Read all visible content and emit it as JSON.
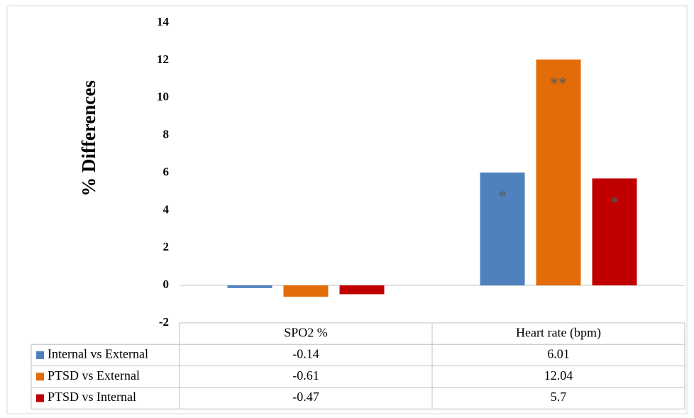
{
  "chart_data": {
    "type": "bar",
    "y_label": "% Differences",
    "categories": [
      "SPO2 %",
      "Heart rate (bpm)"
    ],
    "series": [
      {
        "name": "Internal vs External",
        "color": "#4f81bd",
        "values": [
          -0.14,
          6.01
        ],
        "markers": [
          null,
          "*"
        ]
      },
      {
        "name": "PTSD vs External",
        "color": "#e36c09",
        "values": [
          -0.61,
          12.04
        ],
        "markers": [
          null,
          "**"
        ]
      },
      {
        "name": "PTSD vs Internal",
        "color": "#c00000",
        "values": [
          -0.47,
          5.7
        ],
        "markers": [
          null,
          "*"
        ]
      }
    ],
    "ylim": [
      -2,
      14
    ],
    "yticks": [
      -2,
      0,
      2,
      4,
      6,
      8,
      10,
      12,
      14
    ],
    "grid": false,
    "data_table": true
  }
}
